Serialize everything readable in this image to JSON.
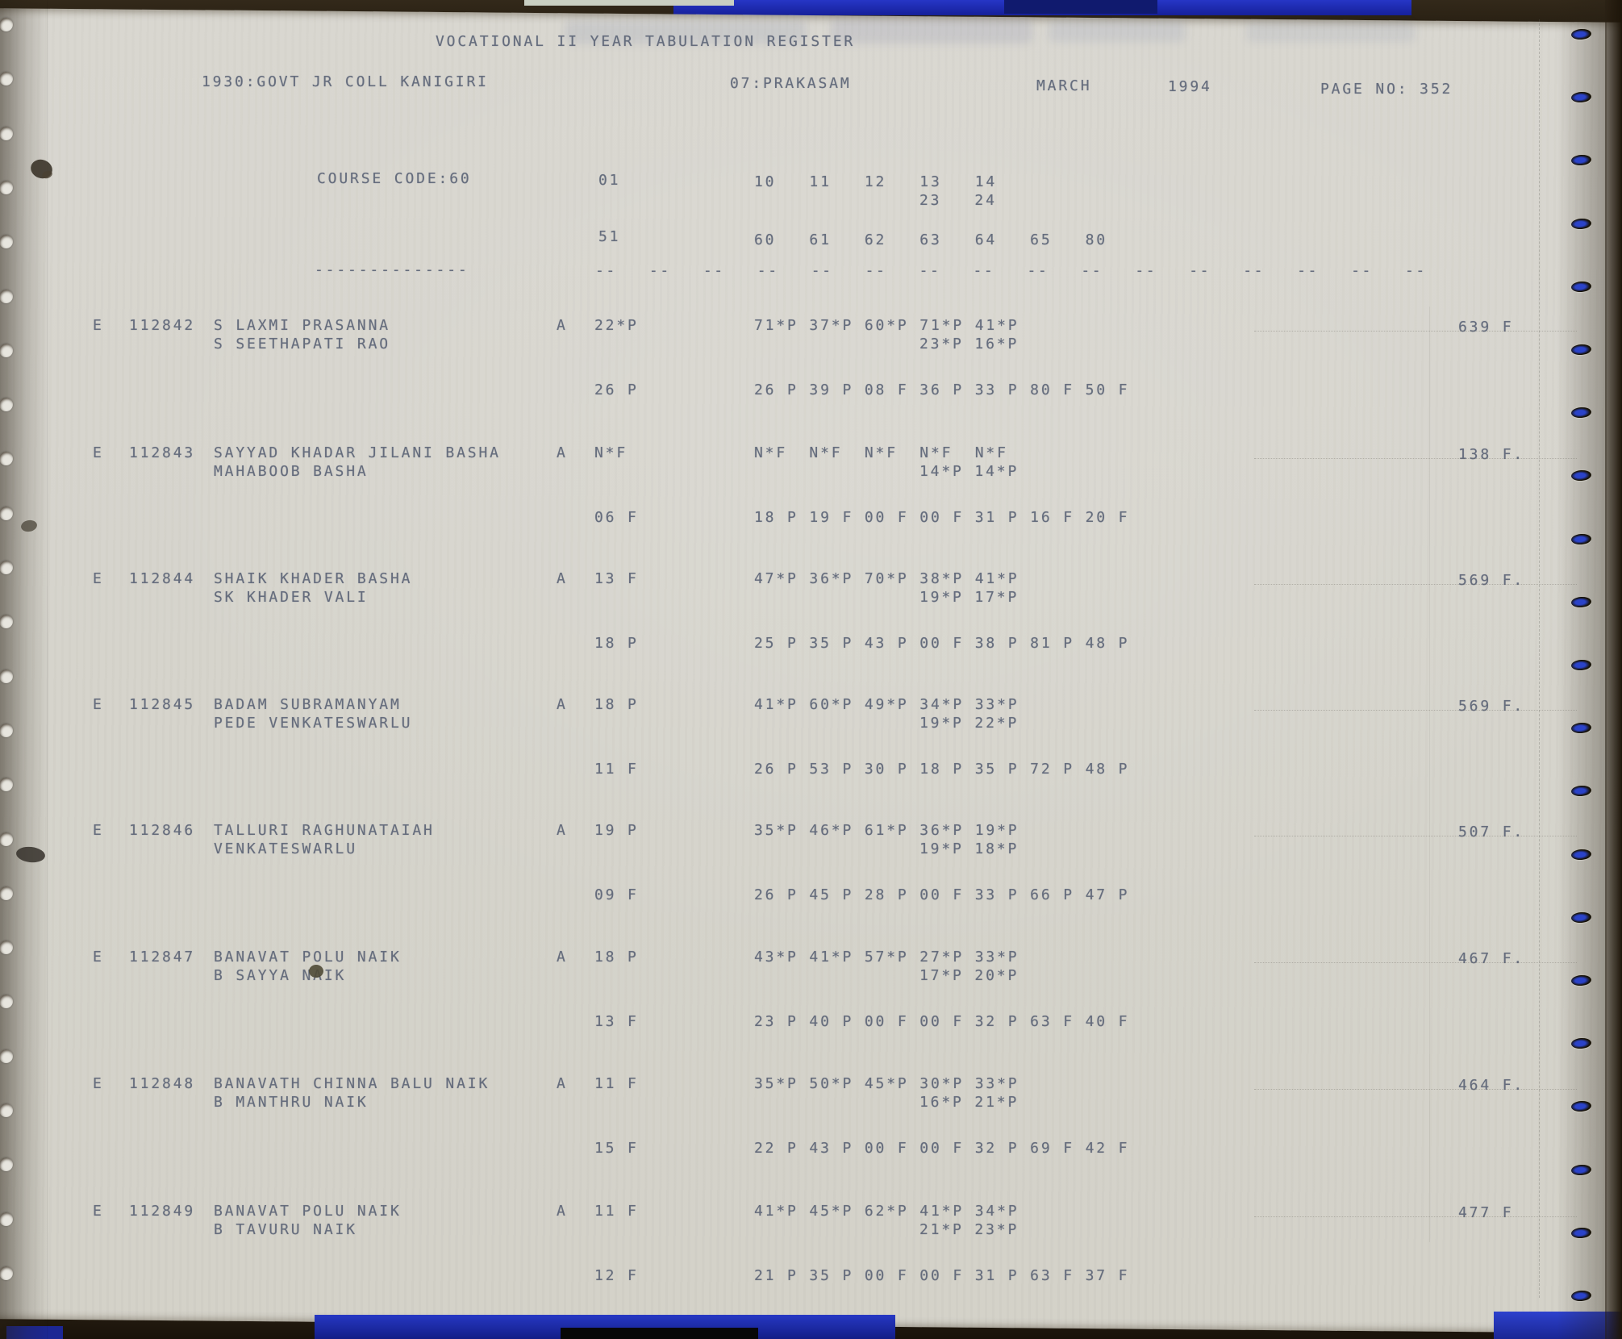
{
  "document": {
    "title": "VOCATIONAL II YEAR TABULATION REGISTER",
    "college": "1930:GOVT JR COLL KANIGIRI",
    "district": "07:PRAKASAM",
    "month": "MARCH",
    "year": "1994",
    "page_no": "PAGE NO: 352"
  },
  "course_header": {
    "course_code": "COURSE CODE:60",
    "first_col_row1": "01",
    "subject_cols_row1": "10   11   12   13   14",
    "subject_cols_row1b": "23   24",
    "first_col_row2": "51",
    "subject_cols_row2": "60   61   62   63   64   65   80",
    "separator_name": "--------------",
    "separator_cols": "--   --   --   --   --   --   --   --   --   --   --   --   --   --   --   --"
  },
  "students": [
    {
      "flag": "E",
      "roll": "112842",
      "name": "S LAXMI PRASANNA",
      "father": "S SEETHAPATI RAO",
      "attendance": "A",
      "mark_first1": "22*P",
      "marks_line1": "71*P 37*P 60*P 71*P 41*P",
      "marks_line2": "23*P 16*P",
      "mark_first2": "26 P",
      "marks_line3": "26 P 39 P 08 F 36 P 33 P 80 F 50 F",
      "total": "639 F"
    },
    {
      "flag": "E",
      "roll": "112843",
      "name": "SAYYAD KHADAR JILANI BASHA",
      "father": "MAHABOOB BASHA",
      "attendance": "A",
      "mark_first1": "N*F",
      "marks_line1": "N*F  N*F  N*F  N*F  N*F",
      "marks_line2": "14*P 14*P",
      "mark_first2": "06 F",
      "marks_line3": "18 P 19 F 00 F 00 F 31 P 16 F 20 F",
      "total": "138 F."
    },
    {
      "flag": "E",
      "roll": "112844",
      "name": "SHAIK KHADER BASHA",
      "father": "SK KHADER VALI",
      "attendance": "A",
      "mark_first1": "13 F",
      "marks_line1": "47*P 36*P 70*P 38*P 41*P",
      "marks_line2": "19*P 17*P",
      "mark_first2": "18 P",
      "marks_line3": "25 P 35 P 43 P 00 F 38 P 81 P 48 P",
      "total": "569 F."
    },
    {
      "flag": "E",
      "roll": "112845",
      "name": "BADAM SUBRAMANYAM",
      "father": "PEDE VENKATESWARLU",
      "attendance": "A",
      "mark_first1": "18 P",
      "marks_line1": "41*P 60*P 49*P 34*P 33*P",
      "marks_line2": "19*P 22*P",
      "mark_first2": "11 F",
      "marks_line3": "26 P 53 P 30 P 18 P 35 P 72 P 48 P",
      "total": "569 F."
    },
    {
      "flag": "E",
      "roll": "112846",
      "name": "TALLURI RAGHUNATAIAH",
      "father": "VENKATESWARLU",
      "attendance": "A",
      "mark_first1": "19 P",
      "marks_line1": "35*P 46*P 61*P 36*P 19*P",
      "marks_line2": "19*P 18*P",
      "mark_first2": "09 F",
      "marks_line3": "26 P 45 P 28 P 00 F 33 P 66 P 47 P",
      "total": "507 F."
    },
    {
      "flag": "E",
      "roll": "112847",
      "name": "BANAVAT POLU NAIK",
      "father": "B SAYYA NAIK",
      "attendance": "A",
      "mark_first1": "18 P",
      "marks_line1": "43*P 41*P 57*P 27*P 33*P",
      "marks_line2": "17*P 20*P",
      "mark_first2": "13 F",
      "marks_line3": "23 P 40 P 00 F 00 F 32 P 63 F 40 F",
      "total": "467 F."
    },
    {
      "flag": "E",
      "roll": "112848",
      "name": "BANAVATH CHINNA BALU NAIK",
      "father": "B MANTHRU NAIK",
      "attendance": "A",
      "mark_first1": "11 F",
      "marks_line1": "35*P 50*P 45*P 30*P 33*P",
      "marks_line2": "16*P 21*P",
      "mark_first2": "15 F",
      "marks_line3": "22 P 43 P 00 F 00 F 32 P 69 F 42 F",
      "total": "464 F."
    },
    {
      "flag": "E",
      "roll": "112849",
      "name": "BANAVAT POLU NAIK",
      "father": "B TAVURU NAIK",
      "attendance": "A",
      "mark_first1": "11 F",
      "marks_line1": "41*P 45*P 62*P 41*P 34*P",
      "marks_line2": "21*P 23*P",
      "mark_first2": "12 F",
      "marks_line3": "21 P 35 P 00 F 00 F 31 P 63 F 37 F",
      "total": "477 F"
    }
  ]
}
